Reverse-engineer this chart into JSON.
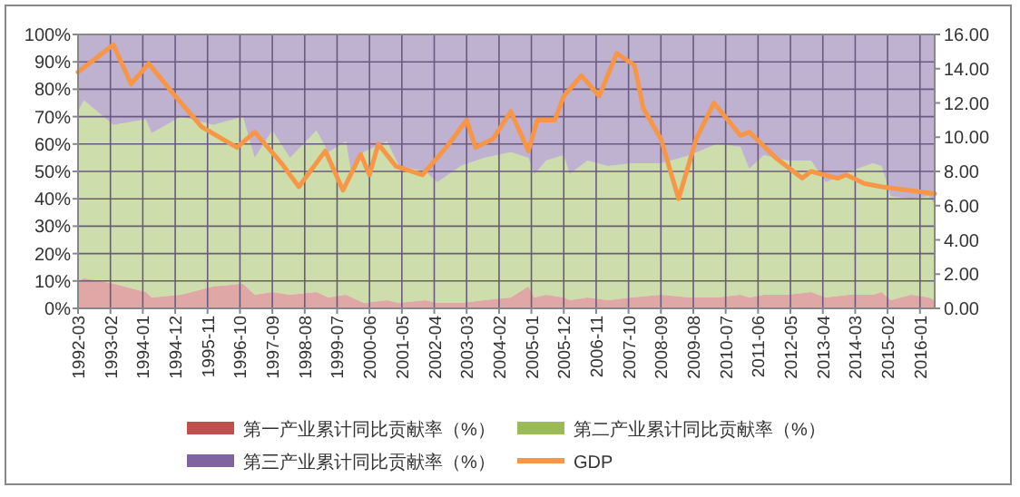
{
  "chart_data": {
    "type": "area",
    "stacked": true,
    "legend": "bottom",
    "grid": true,
    "x": [
      "1992-03",
      "1992-05",
      "1993-03",
      "1994-02",
      "1994-04",
      "1995-02",
      "1996-01",
      "1996-11",
      "1997-03",
      "1997-09",
      "1998-03",
      "1998-12",
      "1999-04",
      "1999-10",
      "1999-12",
      "2000-04",
      "2000-12",
      "2001-04",
      "2002-01",
      "2002-05",
      "2003-01",
      "2003-09",
      "2004-06",
      "2004-12",
      "2005-02",
      "2005-06",
      "2005-12",
      "2006-02",
      "2006-08",
      "2007-03",
      "2007-11",
      "2008-09",
      "2009-07",
      "2010-04",
      "2010-12",
      "2011-03",
      "2011-08",
      "2012-04",
      "2012-12",
      "2013-05",
      "2014-01",
      "2014-09",
      "2014-12",
      "2015-03",
      "2015-10",
      "2016-04",
      "2016-06"
    ],
    "xlim": [
      "1992-03",
      "2016-06"
    ],
    "xticks": [
      "1992-03",
      "1993-02",
      "1994-01",
      "1994-12",
      "1995-11",
      "1996-10",
      "1997-09",
      "1998-08",
      "1999-07",
      "2000-06",
      "2001-05",
      "2002-04",
      "2003-03",
      "2004-02",
      "2005-01",
      "2005-12",
      "2006-11",
      "2007-10",
      "2008-09",
      "2009-08",
      "2010-07",
      "2011-06",
      "2012-05",
      "2013-04",
      "2014-03",
      "2015-02",
      "2016-01"
    ],
    "ylim": [
      0,
      100
    ],
    "yticks": [
      {
        "value": 0,
        "label": "0%"
      },
      {
        "value": 10,
        "label": "10%"
      },
      {
        "value": 20,
        "label": "20%"
      },
      {
        "value": 30,
        "label": "30%"
      },
      {
        "value": 40,
        "label": "40%"
      },
      {
        "value": 50,
        "label": "50%"
      },
      {
        "value": 60,
        "label": "60%"
      },
      {
        "value": 70,
        "label": "70%"
      },
      {
        "value": 80,
        "label": "80%"
      },
      {
        "value": 90,
        "label": "90%"
      },
      {
        "value": 100,
        "label": "100%"
      }
    ],
    "y2lim": [
      0,
      16
    ],
    "y2ticks": [
      {
        "value": 0,
        "label": "0.00"
      },
      {
        "value": 2,
        "label": "2.00"
      },
      {
        "value": 4,
        "label": "4.00"
      },
      {
        "value": 6,
        "label": "6.00"
      },
      {
        "value": 8,
        "label": "8.00"
      },
      {
        "value": 10,
        "label": "10.00"
      },
      {
        "value": 12,
        "label": "12.00"
      },
      {
        "value": 14,
        "label": "14.00"
      },
      {
        "value": 16,
        "label": "16.00"
      }
    ],
    "series": [
      {
        "name": "第一产业累计同比贡献率（%）",
        "color": "#c0504d",
        "values": [
          10,
          11,
          9,
          6,
          4,
          5,
          8,
          9,
          5,
          6,
          5,
          6,
          4,
          5,
          4,
          2,
          3,
          2,
          3,
          2,
          2,
          3,
          4,
          8,
          4,
          5,
          4,
          3,
          4,
          3,
          4,
          5,
          4,
          4,
          5,
          4,
          5,
          5,
          6,
          4,
          5,
          5,
          6,
          3,
          5,
          4,
          3
        ]
      },
      {
        "name": "第二产业累计同比贡献率（%）",
        "color": "#9bbb59",
        "values": [
          62,
          65,
          58,
          63,
          60,
          65,
          59,
          61,
          50,
          59,
          50,
          59,
          53,
          56,
          44,
          55,
          58,
          50,
          47,
          44,
          50,
          52,
          53,
          47,
          45,
          49,
          52,
          46,
          50,
          49,
          49,
          48,
          52,
          56,
          54,
          47,
          51,
          49,
          48,
          42,
          45,
          48,
          46,
          38,
          35,
          37,
          35
        ]
      },
      {
        "name": "第三产业累计同比贡献率（%）",
        "color": "#8064a2",
        "values": [
          28,
          24,
          33,
          31,
          36,
          30,
          33,
          30,
          45,
          35,
          45,
          35,
          43,
          39,
          52,
          43,
          39,
          48,
          50,
          54,
          48,
          45,
          43,
          45,
          51,
          46,
          44,
          51,
          46,
          48,
          47,
          47,
          44,
          40,
          41,
          49,
          44,
          46,
          46,
          54,
          50,
          47,
          48,
          59,
          60,
          59,
          62
        ]
      },
      {
        "name": "GDP",
        "type": "line",
        "axis": "y2",
        "color": "#f79646",
        "x": [
          "1992-03",
          "1993-03",
          "1993-09",
          "1994-03",
          "1994-12",
          "1995-09",
          "1996-09",
          "1997-03",
          "1997-12",
          "1998-06",
          "1999-03",
          "1999-09",
          "2000-03",
          "2000-06",
          "2000-09",
          "2001-03",
          "2001-12",
          "2002-09",
          "2003-03",
          "2003-06",
          "2003-12",
          "2004-06",
          "2004-12",
          "2005-03",
          "2005-09",
          "2005-12",
          "2006-06",
          "2006-12",
          "2007-06",
          "2007-12",
          "2008-03",
          "2008-09",
          "2009-03",
          "2009-09",
          "2010-03",
          "2010-12",
          "2011-03",
          "2011-12",
          "2012-09",
          "2012-12",
          "2013-09",
          "2013-12",
          "2014-06",
          "2014-12",
          "2016-06"
        ],
        "values": [
          13.8,
          15.4,
          13.1,
          14.3,
          12.4,
          10.6,
          9.4,
          10.3,
          8.5,
          7.1,
          9.2,
          6.9,
          9.0,
          7.8,
          9.6,
          8.3,
          7.8,
          9.6,
          11.0,
          9.4,
          9.9,
          11.5,
          9.2,
          11.0,
          11.0,
          12.4,
          13.6,
          12.4,
          14.9,
          14.2,
          11.7,
          9.9,
          6.4,
          9.9,
          12.0,
          10.1,
          10.3,
          8.8,
          7.6,
          8.0,
          7.6,
          7.8,
          7.3,
          7.1,
          6.7
        ]
      }
    ]
  }
}
